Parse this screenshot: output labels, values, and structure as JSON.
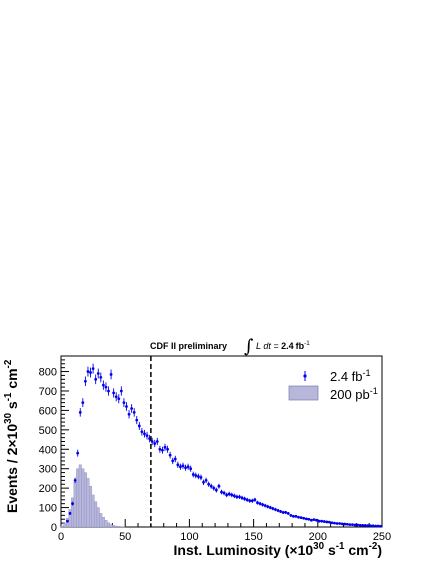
{
  "chart_data": {
    "type": "bar",
    "header": {
      "left": "CDF II preliminary",
      "integral_text": "L dt = ",
      "integral_value": "2.4",
      "integral_unit": "fb",
      "integral_exp": "-1"
    },
    "xlabel": {
      "prefix": "Inst. Luminosity (×10",
      "exp1": "30",
      "mid": " s",
      "exp2": "-1",
      "mid2": " cm",
      "exp3": "-2",
      "suffix": ")"
    },
    "ylabel": {
      "prefix": "Events / 2×10",
      "exp1": "30",
      "mid": " s",
      "exp2": "-1",
      "mid2": " cm",
      "exp3": "-2"
    },
    "xlim": [
      0,
      250
    ],
    "ylim": [
      0,
      880
    ],
    "xticks": [
      0,
      50,
      100,
      150,
      200,
      250
    ],
    "yticks": [
      0,
      100,
      200,
      300,
      400,
      500,
      600,
      700,
      800
    ],
    "cut_line_x": 70,
    "legend": [
      {
        "label": "2.4 fb",
        "exp": "-1",
        "marker": "point",
        "color": "#0000ee"
      },
      {
        "label": "200 pb",
        "exp": "-1",
        "marker": "box",
        "color": "#b7b7dc"
      }
    ],
    "series": [
      {
        "name": "2.4 fb-1",
        "style": "points",
        "color": "#0000ee",
        "x": [
          5,
          7,
          9,
          11,
          13,
          15,
          17,
          19,
          21,
          23,
          25,
          27,
          29,
          31,
          33,
          35,
          37,
          39,
          41,
          43,
          45,
          47,
          49,
          51,
          53,
          55,
          57,
          59,
          61,
          63,
          65,
          67,
          69,
          71,
          73,
          75,
          77,
          79,
          81,
          83,
          85,
          87,
          89,
          91,
          93,
          95,
          97,
          99,
          101,
          103,
          105,
          107,
          109,
          111,
          113,
          115,
          117,
          119,
          121,
          123,
          125,
          127,
          129,
          131,
          133,
          135,
          137,
          139,
          141,
          143,
          145,
          147,
          149,
          151,
          153,
          155,
          157,
          159,
          161,
          163,
          165,
          167,
          169,
          171,
          173,
          175,
          177,
          179,
          181,
          183,
          185,
          187,
          189,
          191,
          193,
          195,
          197,
          199,
          201,
          203,
          205,
          207,
          209,
          211,
          213,
          215,
          217,
          219,
          221,
          223,
          225,
          227,
          229,
          231,
          233,
          235,
          237,
          239,
          241,
          243,
          245,
          247,
          249
        ],
        "values": [
          30,
          70,
          120,
          240,
          380,
          590,
          640,
          750,
          800,
          795,
          815,
          760,
          790,
          770,
          730,
          720,
          700,
          785,
          690,
          670,
          660,
          700,
          640,
          620,
          580,
          610,
          590,
          550,
          520,
          490,
          480,
          470,
          455,
          440,
          430,
          440,
          400,
          395,
          410,
          400,
          370,
          340,
          350,
          320,
          310,
          315,
          305,
          310,
          300,
          270,
          265,
          260,
          255,
          230,
          240,
          220,
          210,
          200,
          190,
          210,
          180,
          175,
          165,
          170,
          165,
          160,
          155,
          155,
          150,
          145,
          140,
          135,
          135,
          140,
          125,
          120,
          115,
          110,
          105,
          100,
          95,
          90,
          85,
          80,
          75,
          75,
          70,
          60,
          55,
          55,
          50,
          48,
          45,
          42,
          40,
          35,
          38,
          35,
          30,
          30,
          28,
          26,
          25,
          22,
          20,
          18,
          18,
          16,
          15,
          14,
          12,
          12,
          10,
          10,
          9,
          8,
          8,
          7,
          6,
          6,
          5,
          5,
          4
        ]
      },
      {
        "name": "200 pb-1",
        "style": "hist",
        "color": "#b7b7dc",
        "bin_width": 2,
        "x": [
          0,
          2,
          4,
          6,
          8,
          10,
          12,
          14,
          16,
          18,
          20,
          22,
          24,
          26,
          28,
          30,
          32,
          34,
          36,
          38,
          40,
          42,
          44,
          46,
          48,
          50
        ],
        "values": [
          5,
          20,
          45,
          90,
          150,
          230,
          300,
          320,
          300,
          280,
          250,
          210,
          165,
          130,
          100,
          70,
          50,
          35,
          22,
          12,
          8,
          5,
          3,
          2,
          1,
          0
        ]
      }
    ]
  }
}
